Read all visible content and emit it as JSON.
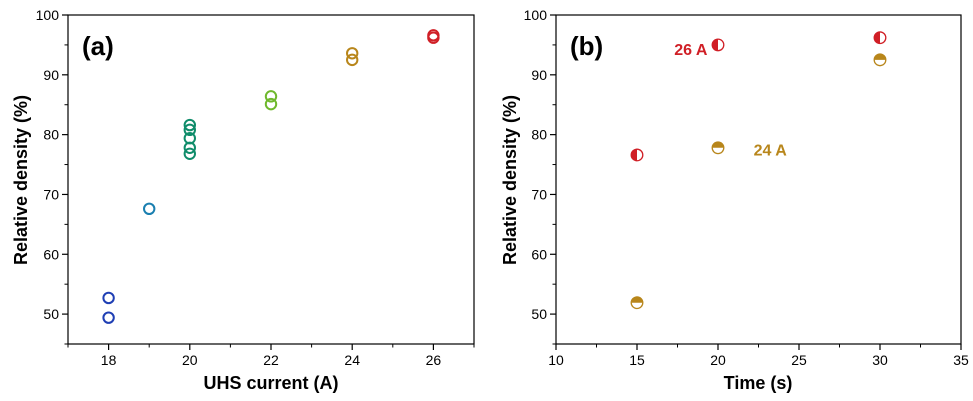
{
  "chart_data": [
    {
      "type": "scatter",
      "panel_label": "(a)",
      "xlabel": "UHS current (A)",
      "ylabel": "Relative density (%)",
      "xlim": [
        17,
        27
      ],
      "ylim": [
        45,
        100
      ],
      "xticks": [
        18,
        20,
        22,
        24,
        26
      ],
      "yticks": [
        50,
        60,
        70,
        80,
        90,
        100
      ],
      "marker": "open-circle",
      "series": [
        {
          "color": "#1f3fb4",
          "points": [
            [
              18,
              52.7
            ],
            [
              18,
              49.4
            ]
          ]
        },
        {
          "color": "#1a7fb0",
          "points": [
            [
              19,
              67.6
            ]
          ]
        },
        {
          "color": "#0f8c6a",
          "points": [
            [
              20,
              81.6
            ],
            [
              20,
              80.8
            ],
            [
              20,
              79.4
            ],
            [
              20,
              77.8
            ],
            [
              20,
              76.8
            ]
          ]
        },
        {
          "color": "#6fb82d",
          "points": [
            [
              22,
              86.4
            ],
            [
              22,
              85.1
            ]
          ]
        },
        {
          "color": "#b8861b",
          "points": [
            [
              24,
              93.6
            ],
            [
              24,
              92.5
            ]
          ]
        },
        {
          "color": "#d01f26",
          "points": [
            [
              26,
              96.6
            ],
            [
              26,
              96.2
            ]
          ]
        }
      ]
    },
    {
      "type": "scatter",
      "panel_label": "(b)",
      "xlabel": "Time (s)",
      "ylabel": "Relative density (%)",
      "xlim": [
        10,
        35
      ],
      "ylim": [
        45,
        100
      ],
      "xticks": [
        10,
        15,
        20,
        25,
        30,
        35
      ],
      "yticks": [
        50,
        60,
        70,
        80,
        90,
        100
      ],
      "series": [
        {
          "name": "26 A",
          "color": "#d01f26",
          "marker": "half-left",
          "points": [
            [
              15,
              76.6
            ],
            [
              20,
              95.0
            ],
            [
              30,
              96.2
            ]
          ]
        },
        {
          "name": "24 A",
          "color": "#b8861b",
          "marker": "half-top",
          "points": [
            [
              15,
              51.9
            ],
            [
              20,
              77.8
            ],
            [
              30,
              92.5
            ]
          ]
        }
      ],
      "annotations": [
        {
          "text": "26 A",
          "color": "#d01f26",
          "x": 17.3,
          "y": 93.3
        },
        {
          "text": "24 A",
          "color": "#b8861b",
          "x": 22.2,
          "y": 76.5
        }
      ]
    }
  ]
}
